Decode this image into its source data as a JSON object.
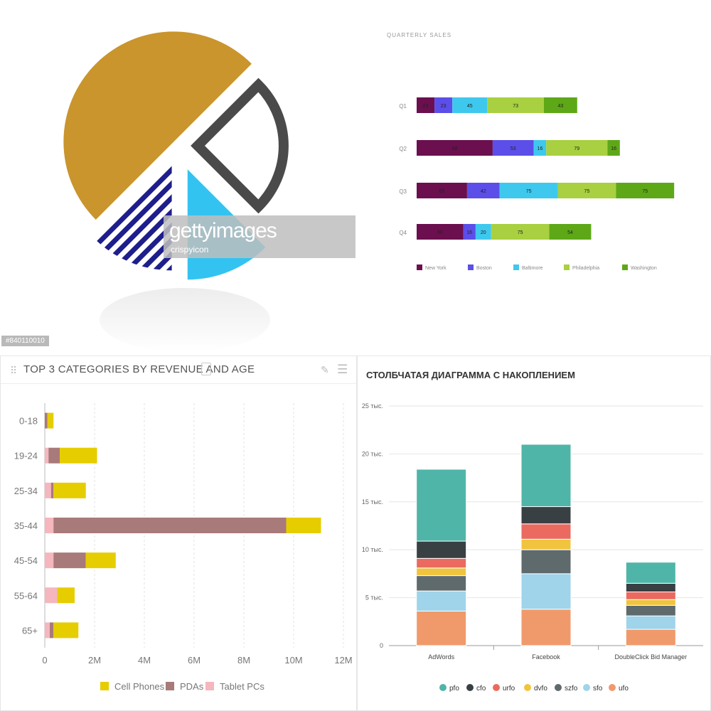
{
  "watermark": {
    "brand": "gettyimages",
    "credit": "crispyicon",
    "image_id": "#840110010"
  },
  "colors": {
    "pie_gold": "#c9952c",
    "pie_cyan": "#33c3f0",
    "pie_navy": "#1e1e8c",
    "pie_outline": "#4a4a4a",
    "new_york": "#6b0f4e",
    "boston": "#5c4ee8",
    "baltimore": "#3ec8ee",
    "philadelphia": "#a8d040",
    "washington": "#5ea818",
    "cell_phones": "#e6cd00",
    "pdas": "#a87a7a",
    "tablet_pcs": "#f6b6bd",
    "pfo": "#4fb5a8",
    "cfo": "#384043",
    "urfo": "#ea6a60",
    "dvfo": "#f0c43e",
    "szfo": "#5f6a6c",
    "sfo": "#9fd4ea",
    "ufo": "#f09a6c"
  },
  "pie": {
    "icon_name": "pie-chart-icon",
    "chart_data": {
      "type": "pie",
      "slices": [
        {
          "name": "gold",
          "value": 50
        },
        {
          "name": "outline",
          "value": 25
        },
        {
          "name": "cyan",
          "value": 12.5
        },
        {
          "name": "striped",
          "value": 12.5
        }
      ]
    }
  },
  "quarterly": {
    "title": "QUARTERLY SALES",
    "chart_data": {
      "type": "bar",
      "orientation": "horizontal",
      "stacked": true,
      "categories": [
        "Q1",
        "Q2",
        "Q3",
        "Q4"
      ],
      "xlim": [
        0,
        330
      ],
      "legend_position": "bottom",
      "series": [
        {
          "name": "New York",
          "values": [
            23,
            98,
            65,
            60
          ]
        },
        {
          "name": "Boston",
          "values": [
            23,
            53,
            42,
            16
          ]
        },
        {
          "name": "Baltimore",
          "values": [
            45,
            16,
            75,
            20
          ]
        },
        {
          "name": "Philadelphia",
          "values": [
            73,
            79,
            75,
            75
          ]
        },
        {
          "name": "Washington",
          "values": [
            43,
            16,
            75,
            54
          ]
        }
      ]
    }
  },
  "age": {
    "title": "TOP 3 CATEGORIES BY REVENUE AND AGE",
    "chart_data": {
      "type": "bar",
      "orientation": "horizontal",
      "stacked": true,
      "categories": [
        "0-18",
        "19-24",
        "25-34",
        "35-44",
        "45-54",
        "55-64",
        "65+"
      ],
      "xlim": [
        0,
        12000000
      ],
      "xticks": [
        0,
        2000000,
        4000000,
        6000000,
        8000000,
        10000000,
        12000000
      ],
      "xtick_labels": [
        "0",
        "2M",
        "4M",
        "6M",
        "8M",
        "10M",
        "12M"
      ],
      "grid": true,
      "legend_position": "bottom",
      "series": [
        {
          "name": "Tablet PCs",
          "values": [
            0,
            150000,
            250000,
            350000,
            350000,
            500000,
            200000
          ]
        },
        {
          "name": "PDAs",
          "values": [
            100000,
            450000,
            100000,
            9350000,
            1300000,
            0,
            150000
          ]
        },
        {
          "name": "Cell Phones",
          "values": [
            250000,
            1500000,
            1300000,
            1400000,
            1200000,
            700000,
            1000000
          ]
        }
      ]
    }
  },
  "stacked": {
    "title": "СТОЛБЧАТАЯ ДИАГРАММА С НАКОПЛЕНИЕМ",
    "chart_data": {
      "type": "bar",
      "stacked": true,
      "categories": [
        "AdWords",
        "Facebook",
        "DoubleClick Bid Manager"
      ],
      "ylim": [
        0,
        25000
      ],
      "yticks": [
        0,
        5000,
        10000,
        15000,
        20000,
        25000
      ],
      "ytick_labels": [
        "0",
        "5 тыс.",
        "10 тыс.",
        "15 тыс.",
        "20 тыс.",
        "25 тыс."
      ],
      "grid": true,
      "legend_position": "bottom",
      "series": [
        {
          "name": "ufo",
          "values": [
            3600,
            3800,
            1700
          ]
        },
        {
          "name": "sfo",
          "values": [
            2100,
            3700,
            1400
          ]
        },
        {
          "name": "szfo",
          "values": [
            1600,
            2500,
            1100
          ]
        },
        {
          "name": "dvfo",
          "values": [
            800,
            1100,
            600
          ]
        },
        {
          "name": "urfo",
          "values": [
            1000,
            1600,
            800
          ]
        },
        {
          "name": "cfo",
          "values": [
            1800,
            1800,
            900
          ]
        },
        {
          "name": "pfo",
          "values": [
            7500,
            6500,
            2200
          ]
        }
      ]
    }
  }
}
